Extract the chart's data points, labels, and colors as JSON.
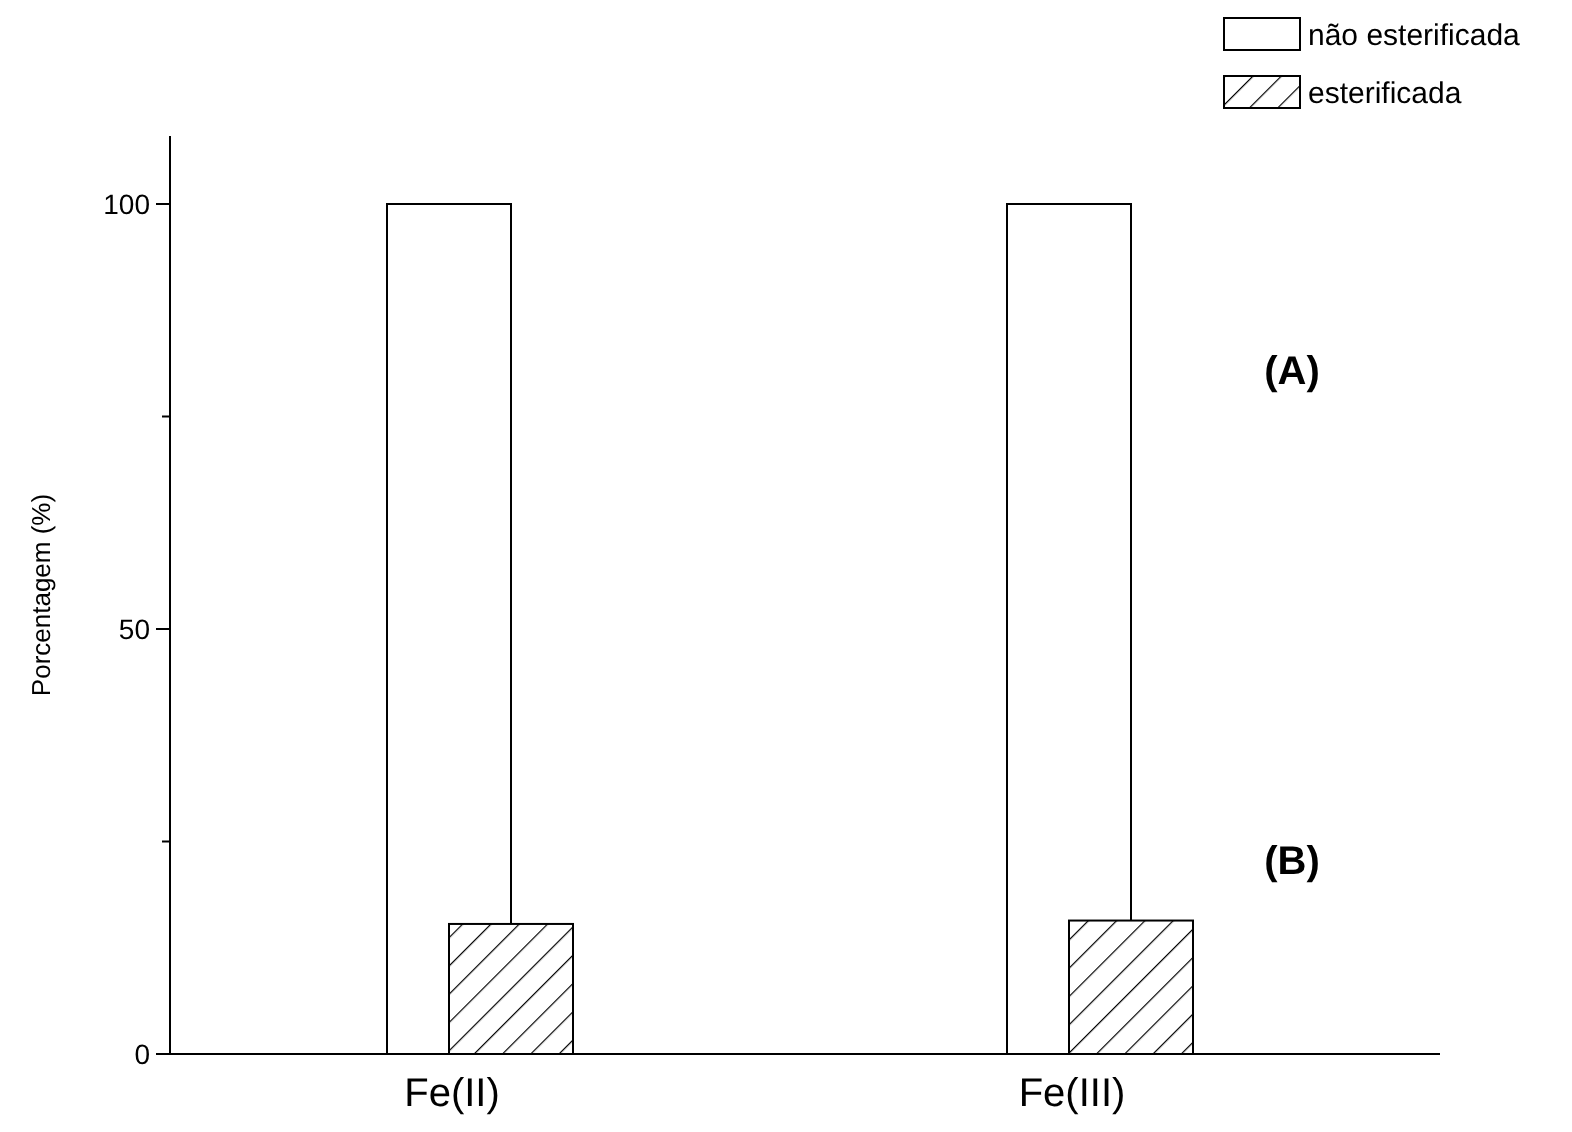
{
  "chart_data": {
    "type": "bar",
    "ylabel": "Porcentagem (%)",
    "categories": [
      "Fe(II)",
      "Fe(III)"
    ],
    "series": [
      {
        "name": "não esterificada",
        "color": "#ffffff",
        "values": [
          100,
          100
        ]
      },
      {
        "name": "esterificada",
        "color": "#000000",
        "values": [
          15.3,
          15.7
        ]
      }
    ],
    "ylim": [
      0,
      108
    ],
    "yticks": [
      0,
      {
        "value": 25,
        "label": null
      },
      50,
      {
        "value": 75,
        "label": null
      },
      100
    ],
    "legend": "top right",
    "annotations": [
      "(A)",
      "(B)"
    ]
  }
}
